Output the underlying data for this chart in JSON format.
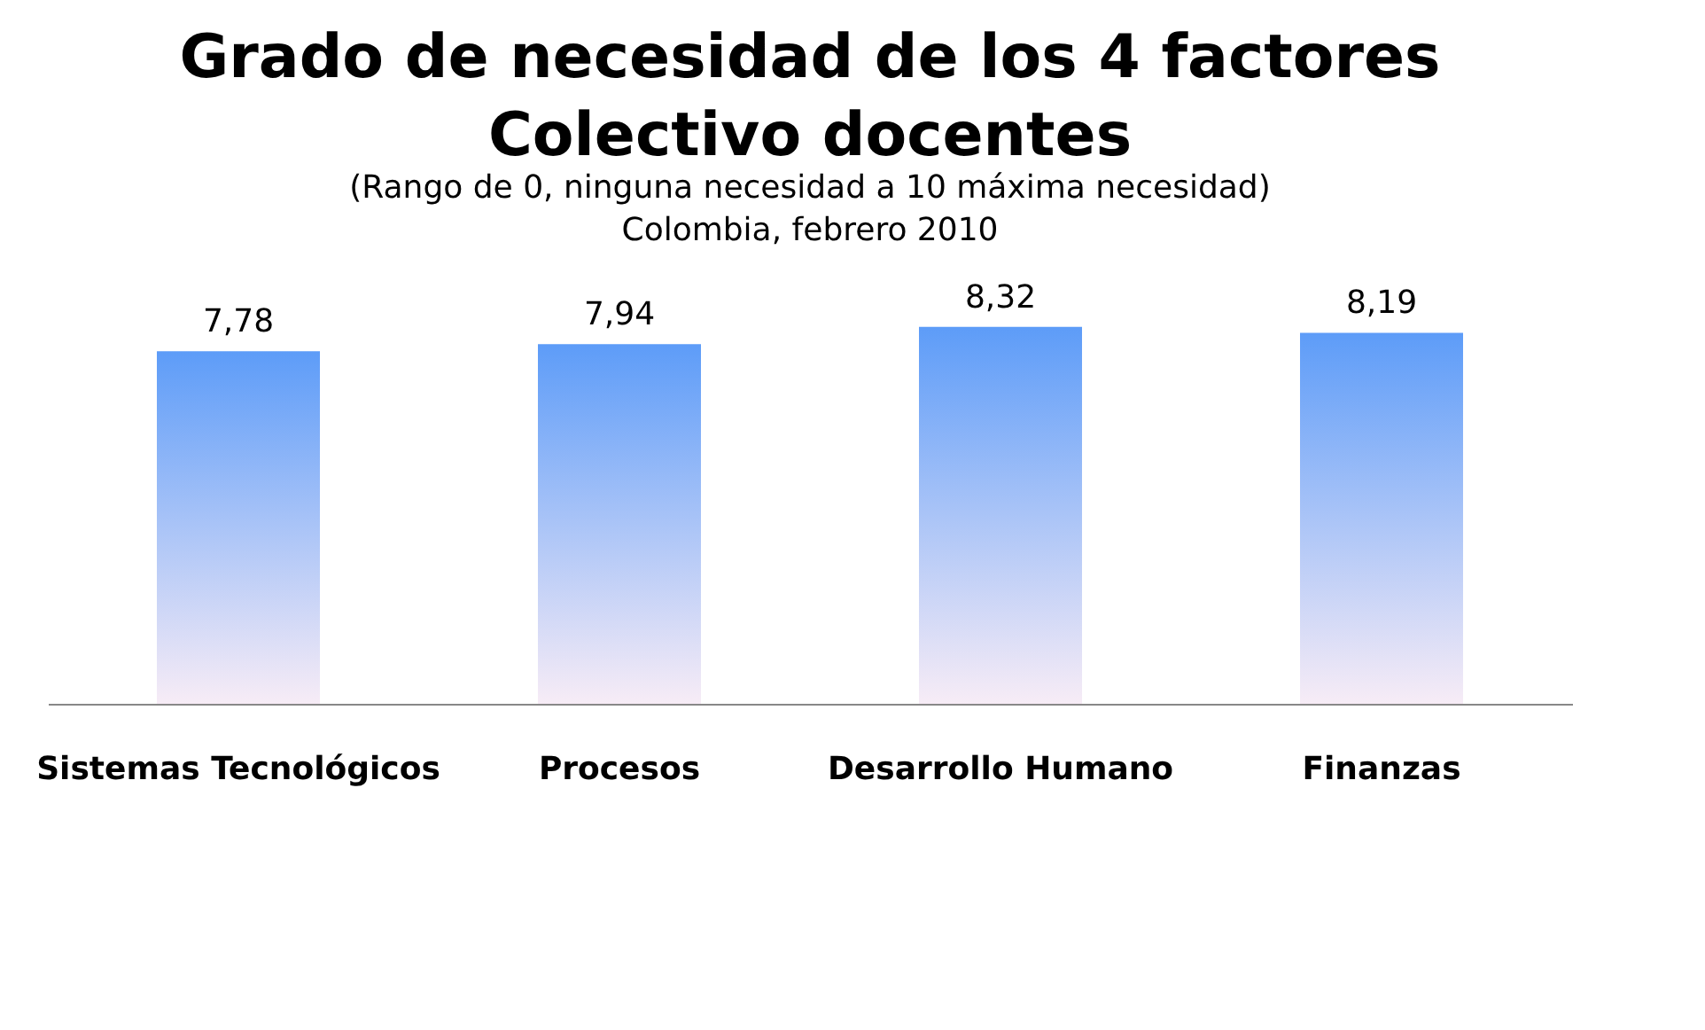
{
  "chart_data": {
    "type": "bar",
    "title": "Grado de necesidad de los 4 factores\nColectivo docentes",
    "subtitle": "(Rango de 0, ninguna necesidad a 10 máxima necesidad)\nColombia, febrero 2010",
    "categories": [
      "Sistemas Tecnológicos",
      "Procesos",
      "Desarrollo Humano",
      "Finanzas"
    ],
    "values": [
      7.78,
      7.94,
      8.32,
      8.19
    ],
    "value_labels": [
      "7,78",
      "7,94",
      "8,32",
      "8,19"
    ],
    "color": "#5d9cf8",
    "grid": false
  }
}
